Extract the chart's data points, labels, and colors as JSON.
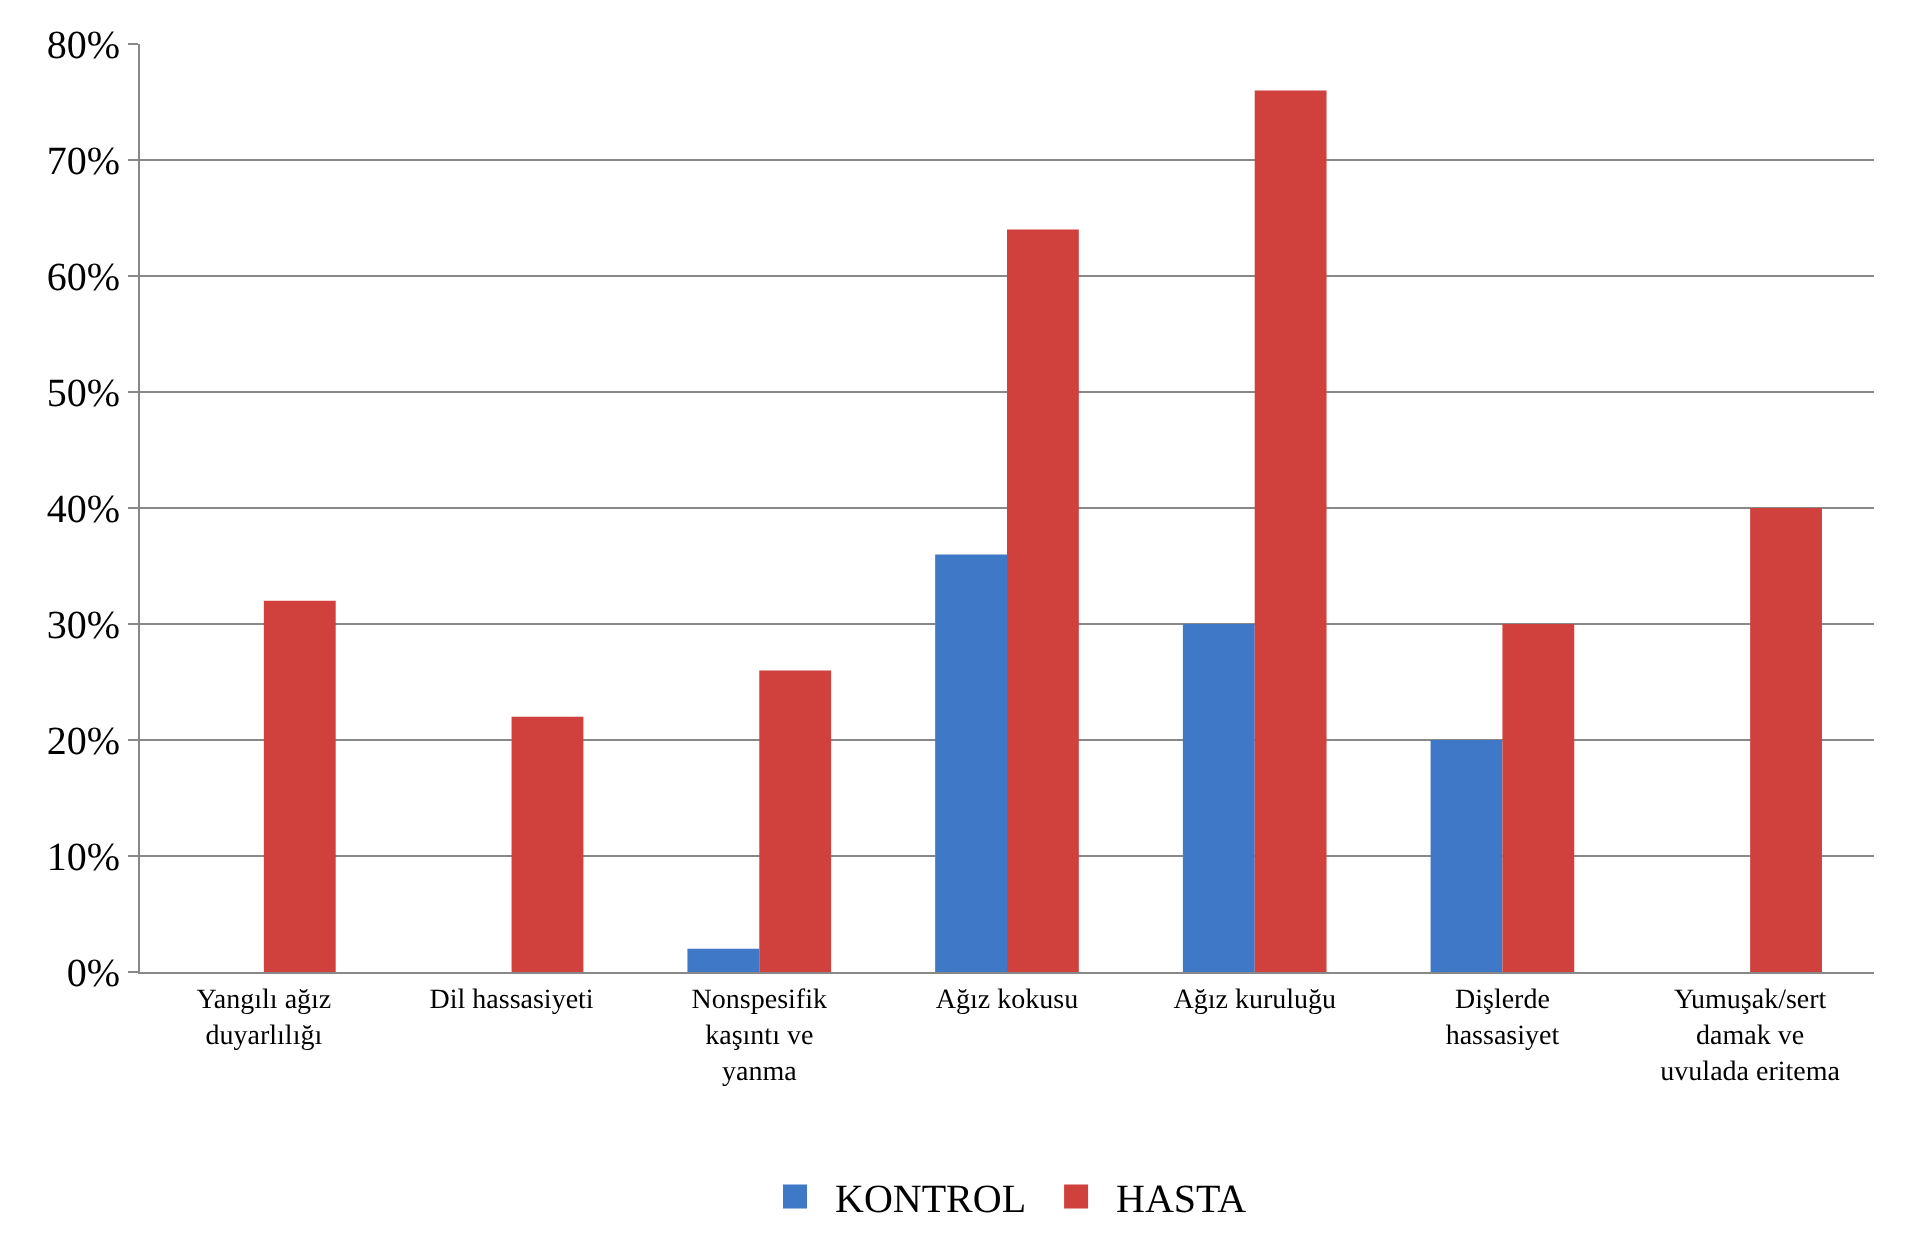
{
  "chart_data": {
    "type": "bar",
    "categories": [
      "Yangılı ağız duyarlılığı",
      "Dil hassasiyeti",
      "Nonspesifik kaşıntı ve yanma",
      "Ağız kokusu",
      "Ağız kuruluğu",
      "Dişlerde hassasiyet",
      "Yumuşak/sert damak ve uvulada eritema"
    ],
    "series": [
      {
        "name": "KONTROL",
        "color": "#3f78c6",
        "values": [
          0,
          0,
          2,
          36,
          30,
          20,
          0
        ]
      },
      {
        "name": "HASTA",
        "color": "#d0413e",
        "values": [
          32,
          22,
          26,
          64,
          76,
          30,
          40
        ]
      }
    ],
    "ylim": [
      0,
      80
    ],
    "yticks": [
      {
        "value": 0,
        "label": "0%"
      },
      {
        "value": 10,
        "label": "10%"
      },
      {
        "value": 20,
        "label": "20%"
      },
      {
        "value": 30,
        "label": "30%"
      },
      {
        "value": 40,
        "label": "40%"
      },
      {
        "value": 50,
        "label": "50%"
      },
      {
        "value": 60,
        "label": "60%"
      },
      {
        "value": 70,
        "label": "70%"
      },
      {
        "value": 80,
        "label": "80%"
      }
    ],
    "grid": "y",
    "legend": "bottom"
  }
}
